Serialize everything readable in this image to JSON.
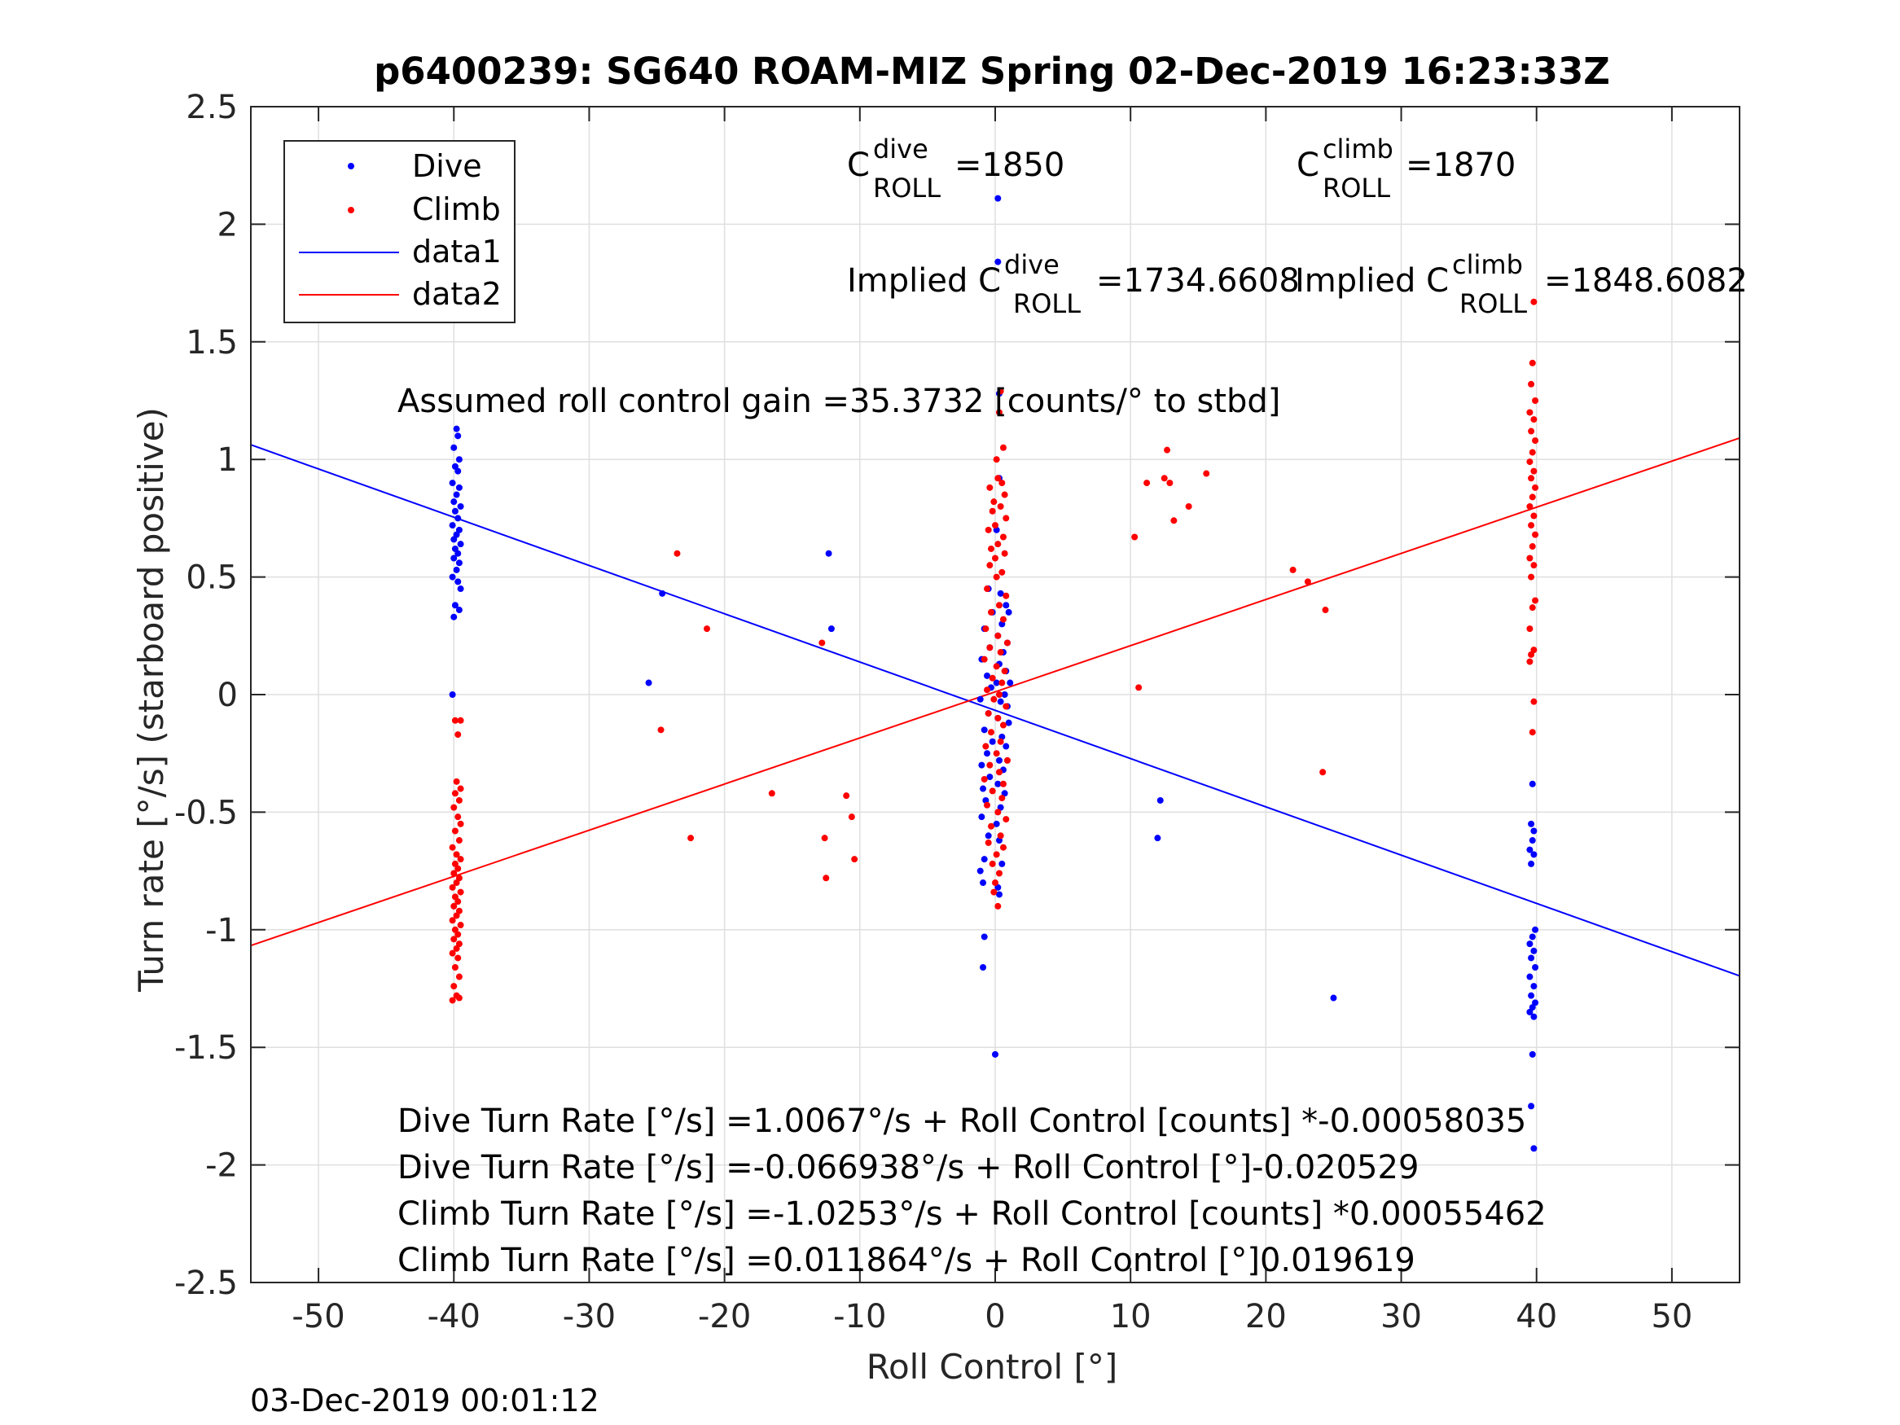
{
  "chart_data": {
    "type": "scatter",
    "title": "p6400239: SG640 ROAM-MIZ Spring 02-Dec-2019 16:23:33Z",
    "xlabel": "Roll Control [°]",
    "ylabel": "Turn rate [°/s] (starboard positive)",
    "xlim": [
      -55,
      55
    ],
    "ylim": [
      -2.5,
      2.5
    ],
    "xticks": [
      -50,
      -40,
      -30,
      -20,
      -10,
      0,
      10,
      20,
      30,
      40,
      50
    ],
    "yticks": [
      -2.5,
      -2,
      -1.5,
      -1,
      -0.5,
      0,
      0.5,
      1,
      1.5,
      2,
      2.5
    ],
    "grid": true,
    "legend_position": "top-left",
    "legend": [
      "Dive",
      "Climb",
      "data1",
      "data2"
    ],
    "colors": {
      "dive": "#0000ff",
      "climb": "#ff0000",
      "axis": "#262626",
      "grid": "#dfdfdf"
    },
    "series": [
      {
        "name": "Dive",
        "kind": "points",
        "points": [
          [
            -39.8,
            1.13
          ],
          [
            -39.7,
            1.1
          ],
          [
            -40.0,
            1.05
          ],
          [
            -39.6,
            1.0
          ],
          [
            -39.9,
            0.97
          ],
          [
            -39.7,
            0.95
          ],
          [
            -40.1,
            0.9
          ],
          [
            -39.6,
            0.88
          ],
          [
            -39.8,
            0.85
          ],
          [
            -40.0,
            0.82
          ],
          [
            -39.5,
            0.8
          ],
          [
            -39.9,
            0.78
          ],
          [
            -39.7,
            0.75
          ],
          [
            -40.1,
            0.72
          ],
          [
            -39.6,
            0.7
          ],
          [
            -39.8,
            0.68
          ],
          [
            -40.0,
            0.66
          ],
          [
            -39.5,
            0.64
          ],
          [
            -39.9,
            0.62
          ],
          [
            -39.7,
            0.6
          ],
          [
            -40.0,
            0.58
          ],
          [
            -39.6,
            0.56
          ],
          [
            -39.8,
            0.53
          ],
          [
            -40.1,
            0.5
          ],
          [
            -39.7,
            0.48
          ],
          [
            -39.5,
            0.45
          ],
          [
            -39.9,
            0.38
          ],
          [
            -40.0,
            0.33
          ],
          [
            -39.6,
            0.36
          ],
          [
            -40.1,
            0.0
          ],
          [
            -25.6,
            0.05
          ],
          [
            -24.6,
            0.43
          ],
          [
            -12.3,
            0.6
          ],
          [
            -12.1,
            0.28
          ],
          [
            0.2,
            2.11
          ],
          [
            0.2,
            1.84
          ],
          [
            0.3,
            1.28
          ],
          [
            0.3,
            0.92
          ],
          [
            0.1,
            0.7
          ],
          [
            -0.5,
            0.45
          ],
          [
            0.4,
            0.43
          ],
          [
            0.8,
            0.38
          ],
          [
            -0.2,
            0.35
          ],
          [
            1.0,
            0.35
          ],
          [
            0.5,
            0.3
          ],
          [
            -0.8,
            0.28
          ],
          [
            0.2,
            0.25
          ],
          [
            0.9,
            0.22
          ],
          [
            -0.4,
            0.2
          ],
          [
            0.6,
            0.18
          ],
          [
            -1.0,
            0.15
          ],
          [
            0.3,
            0.13
          ],
          [
            0.8,
            0.1
          ],
          [
            -0.6,
            0.08
          ],
          [
            0.1,
            0.05
          ],
          [
            1.1,
            0.05
          ],
          [
            -0.3,
            0.03
          ],
          [
            0.7,
            0.0
          ],
          [
            -1.1,
            -0.02
          ],
          [
            0.4,
            -0.03
          ],
          [
            0.9,
            -0.05
          ],
          [
            -0.5,
            -0.08
          ],
          [
            0.2,
            -0.1
          ],
          [
            1.0,
            -0.12
          ],
          [
            -0.8,
            -0.15
          ],
          [
            0.5,
            -0.18
          ],
          [
            -0.2,
            -0.2
          ],
          [
            0.8,
            -0.22
          ],
          [
            -0.6,
            -0.25
          ],
          [
            0.3,
            -0.28
          ],
          [
            -1.0,
            -0.3
          ],
          [
            0.6,
            -0.32
          ],
          [
            -0.4,
            -0.35
          ],
          [
            0.2,
            -0.38
          ],
          [
            -0.9,
            -0.4
          ],
          [
            0.7,
            -0.42
          ],
          [
            -0.7,
            -0.45
          ],
          [
            0.4,
            -0.48
          ],
          [
            -1.0,
            -0.52
          ],
          [
            0.1,
            -0.55
          ],
          [
            -0.5,
            -0.6
          ],
          [
            0.3,
            -0.62
          ],
          [
            -0.8,
            -0.7
          ],
          [
            0.5,
            -0.72
          ],
          [
            -1.1,
            -0.75
          ],
          [
            -0.9,
            -0.8
          ],
          [
            0.2,
            -0.82
          ],
          [
            0.3,
            -0.85
          ],
          [
            -0.8,
            -1.03
          ],
          [
            -0.9,
            -1.16
          ],
          [
            0.0,
            -1.53
          ],
          [
            12.2,
            -0.45
          ],
          [
            12.0,
            -0.61
          ],
          [
            25.0,
            -1.29
          ],
          [
            39.7,
            -0.38
          ],
          [
            39.6,
            -0.55
          ],
          [
            39.8,
            -0.58
          ],
          [
            39.7,
            -0.62
          ],
          [
            39.5,
            -0.66
          ],
          [
            39.8,
            -0.68
          ],
          [
            39.6,
            -0.72
          ],
          [
            39.9,
            -1.0
          ],
          [
            39.7,
            -1.03
          ],
          [
            39.5,
            -1.06
          ],
          [
            39.8,
            -1.09
          ],
          [
            39.6,
            -1.12
          ],
          [
            39.9,
            -1.16
          ],
          [
            39.5,
            -1.2
          ],
          [
            39.8,
            -1.24
          ],
          [
            39.6,
            -1.28
          ],
          [
            39.9,
            -1.31
          ],
          [
            39.7,
            -1.33
          ],
          [
            39.5,
            -1.35
          ],
          [
            39.8,
            -1.37
          ],
          [
            39.7,
            -1.53
          ],
          [
            39.6,
            -1.75
          ],
          [
            39.8,
            -1.93
          ]
        ]
      },
      {
        "name": "Climb",
        "kind": "points",
        "points": [
          [
            -39.9,
            -0.11
          ],
          [
            -39.5,
            -0.11
          ],
          [
            -39.7,
            -0.17
          ],
          [
            -39.8,
            -0.37
          ],
          [
            -39.5,
            -0.4
          ],
          [
            -39.9,
            -0.42
          ],
          [
            -39.6,
            -0.45
          ],
          [
            -40.0,
            -0.48
          ],
          [
            -39.7,
            -0.52
          ],
          [
            -39.5,
            -0.55
          ],
          [
            -39.9,
            -0.58
          ],
          [
            -39.6,
            -0.62
          ],
          [
            -40.1,
            -0.65
          ],
          [
            -39.8,
            -0.68
          ],
          [
            -39.5,
            -0.7
          ],
          [
            -39.9,
            -0.72
          ],
          [
            -39.7,
            -0.74
          ],
          [
            -40.0,
            -0.76
          ],
          [
            -39.6,
            -0.78
          ],
          [
            -39.8,
            -0.8
          ],
          [
            -40.1,
            -0.82
          ],
          [
            -39.5,
            -0.84
          ],
          [
            -39.9,
            -0.86
          ],
          [
            -39.7,
            -0.88
          ],
          [
            -40.0,
            -0.9
          ],
          [
            -39.6,
            -0.92
          ],
          [
            -39.8,
            -0.94
          ],
          [
            -40.1,
            -0.96
          ],
          [
            -39.5,
            -0.98
          ],
          [
            -39.9,
            -1.0
          ],
          [
            -39.7,
            -1.02
          ],
          [
            -40.0,
            -1.04
          ],
          [
            -39.6,
            -1.06
          ],
          [
            -39.8,
            -1.08
          ],
          [
            -40.1,
            -1.1
          ],
          [
            -39.7,
            -1.12
          ],
          [
            -39.9,
            -1.16
          ],
          [
            -39.6,
            -1.2
          ],
          [
            -40.0,
            -1.24
          ],
          [
            -39.8,
            -1.28
          ],
          [
            -40.1,
            -1.3
          ],
          [
            -39.6,
            -1.29
          ],
          [
            -23.5,
            0.6
          ],
          [
            -21.3,
            0.28
          ],
          [
            -24.7,
            -0.15
          ],
          [
            -22.5,
            -0.61
          ],
          [
            -16.5,
            -0.42
          ],
          [
            -12.8,
            0.22
          ],
          [
            -11.0,
            -0.43
          ],
          [
            -10.6,
            -0.52
          ],
          [
            -10.4,
            -0.7
          ],
          [
            -12.6,
            -0.61
          ],
          [
            -12.5,
            -0.78
          ],
          [
            0.4,
            1.29
          ],
          [
            0.3,
            1.2
          ],
          [
            0.6,
            1.05
          ],
          [
            0.1,
            1.0
          ],
          [
            0.2,
            0.92
          ],
          [
            0.5,
            0.9
          ],
          [
            -0.4,
            0.88
          ],
          [
            0.7,
            0.85
          ],
          [
            -0.1,
            0.82
          ],
          [
            0.4,
            0.8
          ],
          [
            -0.2,
            0.78
          ],
          [
            0.8,
            0.75
          ],
          [
            0.0,
            0.72
          ],
          [
            -0.5,
            0.7
          ],
          [
            0.6,
            0.67
          ],
          [
            0.2,
            0.64
          ],
          [
            -0.3,
            0.62
          ],
          [
            0.7,
            0.6
          ],
          [
            0.0,
            0.58
          ],
          [
            -0.4,
            0.55
          ],
          [
            0.5,
            0.52
          ],
          [
            0.1,
            0.5
          ],
          [
            -0.6,
            0.45
          ],
          [
            0.8,
            0.42
          ],
          [
            0.3,
            0.38
          ],
          [
            -0.3,
            0.35
          ],
          [
            0.6,
            0.32
          ],
          [
            -0.7,
            0.28
          ],
          [
            0.2,
            0.25
          ],
          [
            0.9,
            0.22
          ],
          [
            -0.4,
            0.2
          ],
          [
            0.4,
            0.18
          ],
          [
            -0.8,
            0.15
          ],
          [
            0.1,
            0.12
          ],
          [
            0.7,
            0.1
          ],
          [
            -0.2,
            0.07
          ],
          [
            0.5,
            0.05
          ],
          [
            -0.6,
            0.02
          ],
          [
            0.3,
            0.0
          ],
          [
            -0.1,
            -0.02
          ],
          [
            0.8,
            -0.05
          ],
          [
            -0.5,
            -0.08
          ],
          [
            0.2,
            -0.1
          ],
          [
            0.6,
            -0.13
          ],
          [
            -0.3,
            -0.16
          ],
          [
            0.4,
            -0.2
          ],
          [
            -0.7,
            -0.22
          ],
          [
            0.1,
            -0.25
          ],
          [
            0.9,
            -0.28
          ],
          [
            -0.4,
            -0.3
          ],
          [
            0.3,
            -0.33
          ],
          [
            -0.8,
            -0.36
          ],
          [
            0.6,
            -0.38
          ],
          [
            -0.2,
            -0.41
          ],
          [
            0.5,
            -0.44
          ],
          [
            -0.6,
            -0.47
          ],
          [
            0.2,
            -0.5
          ],
          [
            0.8,
            -0.53
          ],
          [
            -0.3,
            -0.56
          ],
          [
            0.4,
            -0.6
          ],
          [
            -0.5,
            -0.63
          ],
          [
            0.6,
            -0.65
          ],
          [
            0.1,
            -0.68
          ],
          [
            -0.2,
            -0.72
          ],
          [
            0.3,
            -0.76
          ],
          [
            0.0,
            -0.8
          ],
          [
            -0.1,
            -0.84
          ],
          [
            0.2,
            -0.9
          ],
          [
            12.7,
            1.04
          ],
          [
            11.2,
            0.9
          ],
          [
            12.5,
            0.92
          ],
          [
            12.9,
            0.9
          ],
          [
            15.6,
            0.94
          ],
          [
            14.3,
            0.8
          ],
          [
            13.2,
            0.74
          ],
          [
            10.3,
            0.67
          ],
          [
            22.0,
            0.53
          ],
          [
            23.1,
            0.48
          ],
          [
            24.4,
            0.36
          ],
          [
            10.6,
            0.03
          ],
          [
            24.2,
            -0.33
          ],
          [
            39.8,
            1.67
          ],
          [
            39.7,
            1.41
          ],
          [
            39.6,
            1.32
          ],
          [
            39.9,
            1.25
          ],
          [
            39.5,
            1.2
          ],
          [
            39.8,
            1.17
          ],
          [
            39.6,
            1.12
          ],
          [
            39.9,
            1.08
          ],
          [
            39.7,
            1.03
          ],
          [
            39.5,
            0.99
          ],
          [
            39.8,
            0.95
          ],
          [
            39.6,
            0.92
          ],
          [
            39.9,
            0.88
          ],
          [
            39.7,
            0.84
          ],
          [
            39.5,
            0.8
          ],
          [
            39.8,
            0.76
          ],
          [
            39.6,
            0.72
          ],
          [
            39.9,
            0.68
          ],
          [
            39.7,
            0.63
          ],
          [
            39.5,
            0.58
          ],
          [
            39.8,
            0.55
          ],
          [
            39.6,
            0.5
          ],
          [
            39.9,
            0.4
          ],
          [
            39.7,
            0.37
          ],
          [
            39.5,
            0.28
          ],
          [
            39.8,
            0.19
          ],
          [
            39.6,
            0.17
          ],
          [
            39.5,
            0.14
          ],
          [
            39.8,
            -0.03
          ],
          [
            39.7,
            -0.16
          ]
        ]
      },
      {
        "name": "data1",
        "kind": "line",
        "slope": -0.020529,
        "intercept": -0.066938,
        "x": [
          -55,
          55
        ],
        "y": [
          1.0622,
          -1.196
        ]
      },
      {
        "name": "data2",
        "kind": "line",
        "slope": 0.019619,
        "intercept": 0.011864,
        "x": [
          -55,
          55
        ],
        "y": [
          -1.0672,
          1.0909
        ]
      }
    ],
    "annotations": {
      "c_roll_dive": {
        "prefix": "C",
        "sup": "dive",
        "sub": "ROLL",
        "value": "=1850"
      },
      "c_roll_climb": {
        "prefix": "C",
        "sup": "climb",
        "sub": "ROLL",
        "value": "=1870"
      },
      "implied_dive": {
        "prefix": "Implied C",
        "sup": "dive",
        "sub": "ROLL",
        "value": "=1734.6608"
      },
      "implied_climb": {
        "prefix": "Implied C",
        "sup": "climb",
        "sub": "ROLL",
        "value": "=1848.6082"
      },
      "gain": "Assumed roll control gain =35.3732 [counts/° to stbd]",
      "equations": [
        "Dive Turn Rate [°/s] =1.0067°/s + Roll Control [counts] *-0.00058035",
        "Dive Turn Rate [°/s] =-0.066938°/s + Roll Control [°]-0.020529",
        "Climb Turn Rate [°/s] =-1.0253°/s + Roll Control [counts] *0.00055462",
        "Climb Turn Rate [°/s] =0.011864°/s + Roll Control [°]0.019619"
      ],
      "footer_timestamp": "03-Dec-2019 00:01:12"
    }
  }
}
